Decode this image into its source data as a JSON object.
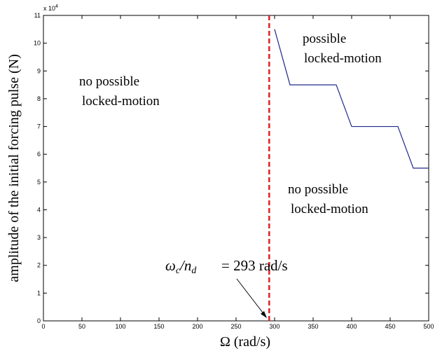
{
  "chart_data": {
    "type": "line",
    "title": "",
    "xlabel": "Ω (rad/s)",
    "ylabel": "amplitude of the initial forcing pulse (N)",
    "y_multiplier": "x 10",
    "y_multiplier_exp": "4",
    "xlim": [
      0,
      500
    ],
    "ylim": [
      0,
      110000
    ],
    "x_ticks": [
      0,
      50,
      100,
      150,
      200,
      250,
      300,
      350,
      400,
      450,
      500
    ],
    "y_ticks": [
      0,
      1,
      2,
      3,
      4,
      5,
      6,
      7,
      8,
      9,
      10,
      11
    ],
    "grid": false,
    "series": [
      {
        "color": "#1f2a8c",
        "x": [
          300,
          320,
          380,
          400,
          460,
          480,
          500
        ],
        "y": [
          105000,
          85000,
          85000,
          70000,
          70000,
          55000,
          55000
        ]
      }
    ],
    "threshold": {
      "x": 293,
      "color": "#dd2222"
    },
    "annotations": {
      "omega_lhs": "ωc/nd",
      "omega_eq": "= 293 rad/s",
      "region_left_1": "no possible",
      "region_left_2": "locked-motion",
      "region_top_1": "possible",
      "region_top_2": "locked-motion",
      "region_bottom_1": "no possible",
      "region_bottom_2": "locked-motion"
    }
  }
}
